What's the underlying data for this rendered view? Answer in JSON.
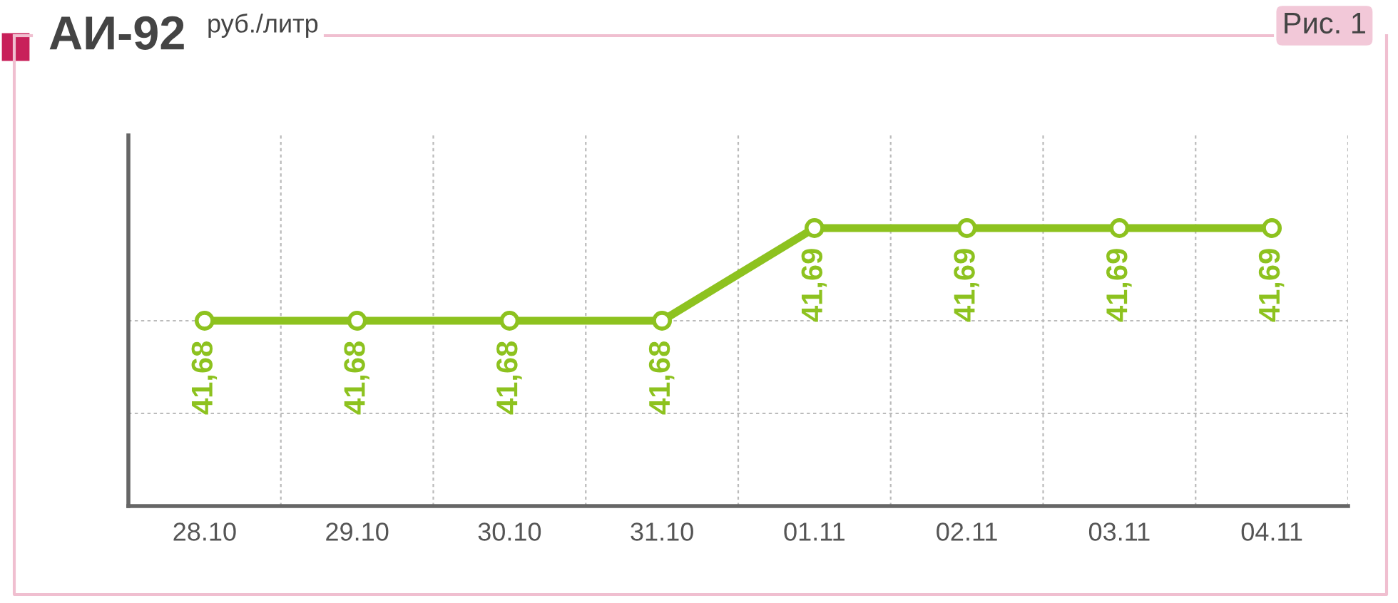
{
  "chart_data": {
    "type": "line",
    "title": "АИ-92",
    "subtitle": "руб./литр",
    "annotations": [
      "Рис. 1"
    ],
    "categories": [
      "28.10",
      "29.10",
      "30.10",
      "31.10",
      "01.11",
      "02.11",
      "03.11",
      "04.11"
    ],
    "series": [
      {
        "color": "#8dc21f",
        "values": [
          41.68,
          41.68,
          41.68,
          41.68,
          41.69,
          41.69,
          41.69,
          41.69
        ],
        "value_labels": [
          "41,68",
          "41,68",
          "41,68",
          "41,68",
          "41,69",
          "41,69",
          "41,69",
          "41,69"
        ]
      }
    ],
    "grid": true,
    "marker": "circle",
    "line_style": "solid",
    "tick_labels": "x"
  }
}
